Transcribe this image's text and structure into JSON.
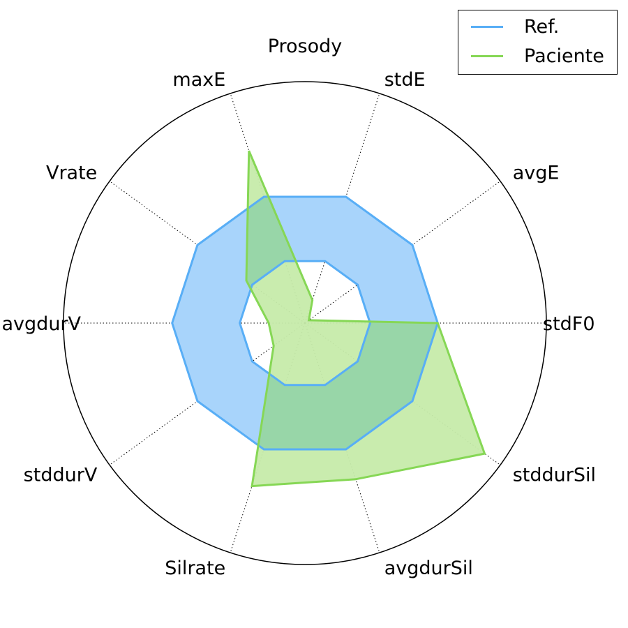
{
  "chart_data": {
    "type": "radar",
    "title": "Prosody",
    "axes": [
      "stdF0",
      "avgE",
      "stdE",
      "maxE",
      "Vrate",
      "avgdurV",
      "stddurV",
      "Silrate",
      "avgdurSil",
      "stddurSil"
    ],
    "rlim": [
      0,
      1
    ],
    "grid": "dotted-spokes",
    "legend_position": "top-right",
    "series": [
      {
        "name": "Ref.",
        "color": "#58aef6",
        "fill": "#a8d4fb",
        "outer": [
          0.55,
          0.55,
          0.55,
          0.55,
          0.55,
          0.55,
          0.55,
          0.55,
          0.55,
          0.55
        ],
        "inner": [
          0.27,
          0.27,
          0.27,
          0.27,
          0.27,
          0.27,
          0.27,
          0.27,
          0.27,
          0.27
        ]
      },
      {
        "name": "Paciente",
        "color": "#86d755",
        "fill": "#c6ebaa",
        "values": [
          0.55,
          0.02,
          0.1,
          0.75,
          0.3,
          0.15,
          0.16,
          0.71,
          0.68,
          0.92
        ]
      }
    ]
  },
  "legend": {
    "items": [
      {
        "label": "Ref.",
        "color": "#58aef6"
      },
      {
        "label": "Paciente",
        "color": "#86d755"
      }
    ]
  }
}
